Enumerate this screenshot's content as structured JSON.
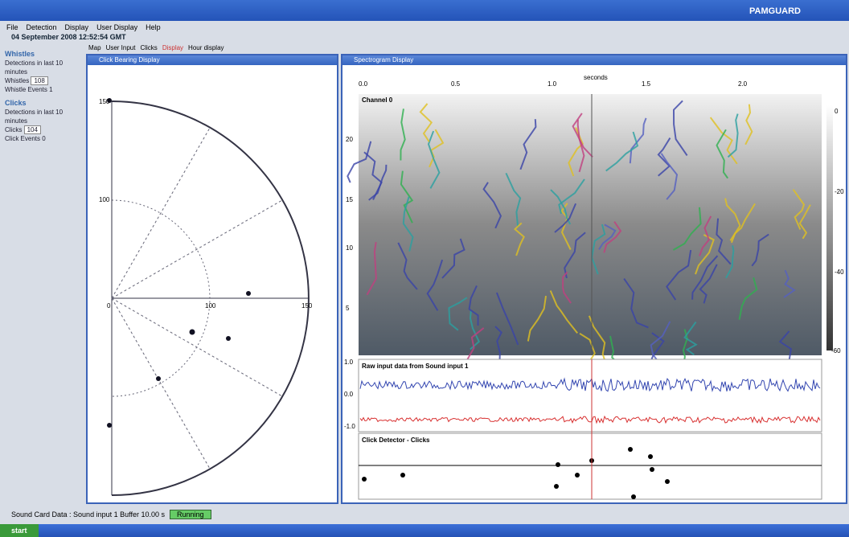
{
  "window": {
    "title": "PAMGUARD"
  },
  "menu": [
    "File",
    "Detection",
    "Display",
    "User Display",
    "Help"
  ],
  "date": "04 September 2008 12:52:54 GMT",
  "tabs": [
    "Map",
    "User Input",
    "Clicks",
    "Display",
    "Hour display"
  ],
  "side_panel": {
    "whistles": {
      "heading": "Whistles",
      "caption": "Detections in last 10 minutes",
      "rows": [
        [
          "Whistles",
          "108"
        ],
        [
          "Whistle Events",
          "1"
        ]
      ]
    },
    "clicks": {
      "heading": "Clicks",
      "caption": "Detections in last 10 minutes",
      "rows": [
        [
          "Clicks",
          "104"
        ],
        [
          "Click Events",
          "0"
        ]
      ]
    }
  },
  "polar": {
    "title": "Click Bearing Display",
    "labels": [
      "150",
      "100",
      "0",
      "100",
      "150"
    ]
  },
  "spectrogram_window": {
    "title": "Spectrogram Display",
    "x_label": "seconds",
    "x_ticks": [
      "0.0",
      "0.5",
      "1.0",
      "1.5",
      "2.0"
    ],
    "y_ticks": [
      "20",
      "15",
      "10",
      "5"
    ],
    "panel_label": "Channel 0",
    "colorbar_ticks": [
      "0",
      "-20",
      "-40",
      "-60"
    ]
  },
  "raw_panel": {
    "title": "Raw input data from Sound input 1",
    "y_ticks": [
      "1.0",
      "0.0",
      "-1.0"
    ]
  },
  "click_panel": {
    "title": "Click Detector - Clicks"
  },
  "status": {
    "text": "Sound Card Data : Sound input 1 Buffer 10.00 s",
    "state": "Running"
  },
  "taskbar": {
    "start": "start"
  }
}
